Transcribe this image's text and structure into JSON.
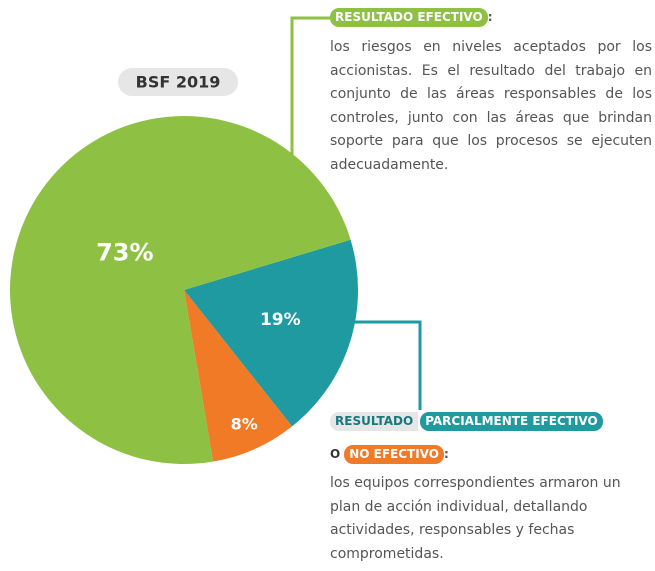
{
  "chart_data": {
    "type": "pie",
    "title": "BSF 2019",
    "values": [
      19,
      8,
      73
    ],
    "value_labels": [
      "19%",
      "8%",
      "73%"
    ],
    "colors": [
      "#1f9aa0",
      "#f07a26",
      "#8dc043"
    ],
    "annotations": [
      {
        "parts": [
          "RESULTADO EFECTIVO",
          ":"
        ],
        "text": "los riesgos en niveles aceptados por los accionistas. Es el resultado del trabajo en conjunto de las áreas responsables de los controles, junto con las áreas que brindan soporte para que los procesos se ejecuten adecuadamente."
      },
      {
        "parts": [
          "RESULTADO",
          "PARCIALMENTE EFECTIVO",
          "O",
          "NO EFECTIVO",
          ":"
        ],
        "text": "los equipos correspondientes armaron un plan de acción individual, detallando actividades, responsables y fechas comprometidas."
      }
    ]
  }
}
